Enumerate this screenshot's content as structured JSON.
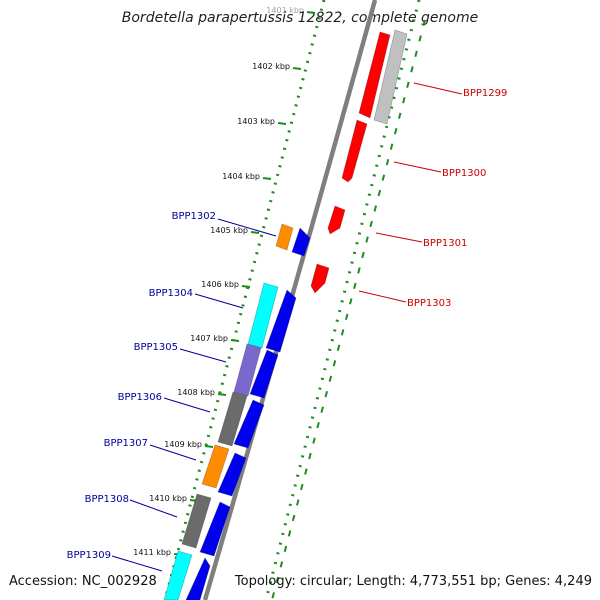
{
  "title": "Bordetella parapertussis 12822, complete genome",
  "accession": "Accession: NC_002928",
  "topology": "Topology: circular; Length: 4,773,551 bp; Genes: 4,249",
  "colors": {
    "backbone": "#7f7f7f",
    "tick": "#1e8c1e",
    "forward_label": "#cc0000",
    "reverse_label": "#000099"
  },
  "ticks": [
    {
      "label": "1401 kbp",
      "faded": true
    },
    {
      "label": "1402 kbp"
    },
    {
      "label": "1403 kbp"
    },
    {
      "label": "1404 kbp"
    },
    {
      "label": "1405 kbp"
    },
    {
      "label": "1406 kbp"
    },
    {
      "label": "1407 kbp"
    },
    {
      "label": "1408 kbp"
    },
    {
      "label": "1409 kbp"
    },
    {
      "label": "1410 kbp"
    },
    {
      "label": "1411 kbp"
    }
  ],
  "forward_labels": [
    "BPP1299",
    "BPP1300",
    "BPP1301",
    "BPP1303"
  ],
  "reverse_labels": [
    "BPP1302",
    "BPP1304",
    "BPP1305",
    "BPP1306",
    "BPP1307",
    "BPP1308",
    "BPP1309"
  ],
  "legend_colors": {
    "forward_gene": "#ff0000",
    "forward_partner": "#c0c0c0",
    "reverse_gene": "#0000ee",
    "cyan": "#00ffff",
    "purple": "#7b68cc",
    "gray": "#6b6b6b",
    "orange": "#ff8c00"
  }
}
